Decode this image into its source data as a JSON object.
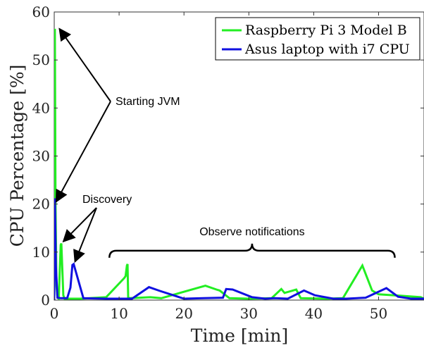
{
  "chart_data": {
    "type": "line",
    "title": "",
    "xlabel": "Time [min]",
    "ylabel": "CPU Percentage [%]",
    "xlim": [
      0,
      57
    ],
    "ylim": [
      0,
      60
    ],
    "xticks": [
      0,
      10,
      20,
      30,
      40,
      50
    ],
    "yticks": [
      0,
      10,
      20,
      30,
      40,
      50,
      60
    ],
    "grid": false,
    "legend_position": "top-right",
    "series": [
      {
        "name": "Raspberry Pi 3 Model B",
        "color": "#22ee22",
        "x": [
          0,
          0.1,
          0.2,
          0.35,
          0.5,
          0.7,
          1.0,
          1.1,
          1.4,
          1.6,
          2.5,
          4.0,
          8.0,
          10.8,
          11.0,
          11.2,
          11.3,
          11.4,
          13.2,
          14.8,
          16.5,
          23.3,
          25.0,
          25.5,
          27.0,
          30.0,
          33.5,
          35.0,
          35.5,
          37.3,
          38.0,
          42.0,
          44.5,
          47.5,
          49.0,
          50.0,
          53.5,
          56.5,
          57
        ],
        "y": [
          0,
          56.5,
          20.5,
          3.0,
          0.5,
          0.3,
          11.5,
          11.8,
          1.0,
          0.3,
          0.3,
          0.3,
          0.6,
          4.6,
          5.0,
          7.2,
          7.5,
          0.4,
          0.5,
          0.6,
          0.4,
          3.0,
          2.2,
          2.0,
          0.4,
          0.3,
          0.4,
          2.3,
          1.5,
          2.2,
          0.4,
          0.3,
          0.4,
          7.2,
          2.0,
          1.2,
          0.9,
          0.6,
          0.3
        ]
      },
      {
        "name": "Asus laptop with i7 CPU",
        "color": "#1010e0",
        "x": [
          0,
          0.1,
          0.25,
          0.5,
          1.0,
          2.0,
          2.5,
          2.8,
          3.0,
          4.5,
          8.0,
          12.0,
          14.6,
          16.3,
          20.0,
          23.0,
          26.0,
          26.5,
          27.5,
          30.5,
          32.5,
          34.0,
          36.0,
          38.5,
          40.2,
          43.0,
          45.0,
          48.0,
          51.2,
          53.0,
          55.0,
          57
        ],
        "y": [
          0,
          21.2,
          7.0,
          0.5,
          0.4,
          0.4,
          2.6,
          7.3,
          7.5,
          0.4,
          0.3,
          0.3,
          2.7,
          1.9,
          0.3,
          0.4,
          0.5,
          2.3,
          2.2,
          0.6,
          0.3,
          0.4,
          0.3,
          2.0,
          1.0,
          0.3,
          0.3,
          0.5,
          2.5,
          0.7,
          0.3,
          0.3
        ]
      }
    ],
    "annotations": [
      {
        "text": "Starting JVM",
        "arrow_targets": [
          [
            0.8,
            56.5
          ],
          [
            0.3,
            20.5
          ]
        ]
      },
      {
        "text": "Discovery",
        "arrow_targets": [
          [
            1.4,
            12.2
          ],
          [
            3.2,
            8.0
          ]
        ]
      },
      {
        "text": "Observe notifications",
        "brace_range": [
          8.5,
          52.5
        ],
        "brace_y": 10
      }
    ]
  }
}
